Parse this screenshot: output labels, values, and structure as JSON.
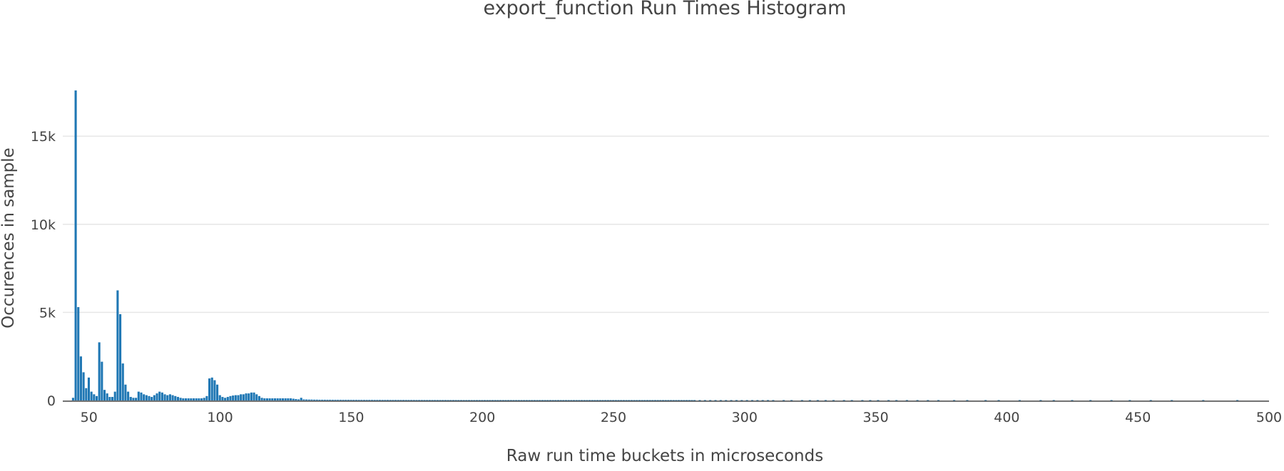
{
  "chart_data": {
    "type": "bar",
    "title": "export_function Run Times Histogram",
    "xlabel": "Raw run time buckets in microseconds",
    "ylabel": "Occurences in sample",
    "xlim": [
      40,
      500
    ],
    "ylim": [
      0,
      18000
    ],
    "x_ticks": [
      50,
      100,
      150,
      200,
      250,
      300,
      350,
      400,
      450,
      500
    ],
    "x_tick_labels": [
      "50",
      "100",
      "150",
      "200",
      "250",
      "300",
      "350",
      "400",
      "450",
      "500"
    ],
    "y_ticks": [
      0,
      5000,
      10000,
      15000
    ],
    "y_tick_labels": [
      "0",
      "5k",
      "10k",
      "15k"
    ],
    "grid": true,
    "color": "#1f77b4",
    "bin_width": 1,
    "bins": [
      [
        44,
        150
      ],
      [
        45,
        17600
      ],
      [
        46,
        5300
      ],
      [
        47,
        2500
      ],
      [
        48,
        1600
      ],
      [
        49,
        700
      ],
      [
        50,
        1300
      ],
      [
        51,
        500
      ],
      [
        52,
        350
      ],
      [
        53,
        250
      ],
      [
        54,
        3300
      ],
      [
        55,
        2200
      ],
      [
        56,
        600
      ],
      [
        57,
        400
      ],
      [
        58,
        200
      ],
      [
        59,
        200
      ],
      [
        60,
        500
      ],
      [
        61,
        6250
      ],
      [
        62,
        4900
      ],
      [
        63,
        2100
      ],
      [
        64,
        900
      ],
      [
        65,
        500
      ],
      [
        66,
        200
      ],
      [
        67,
        150
      ],
      [
        68,
        150
      ],
      [
        69,
        500
      ],
      [
        70,
        450
      ],
      [
        71,
        350
      ],
      [
        72,
        300
      ],
      [
        73,
        250
      ],
      [
        74,
        200
      ],
      [
        75,
        300
      ],
      [
        76,
        400
      ],
      [
        77,
        500
      ],
      [
        78,
        450
      ],
      [
        79,
        350
      ],
      [
        80,
        300
      ],
      [
        81,
        350
      ],
      [
        82,
        300
      ],
      [
        83,
        250
      ],
      [
        84,
        200
      ],
      [
        85,
        150
      ],
      [
        86,
        120
      ],
      [
        87,
        120
      ],
      [
        88,
        120
      ],
      [
        89,
        120
      ],
      [
        90,
        120
      ],
      [
        91,
        120
      ],
      [
        92,
        120
      ],
      [
        93,
        120
      ],
      [
        94,
        150
      ],
      [
        95,
        250
      ],
      [
        96,
        1250
      ],
      [
        97,
        1300
      ],
      [
        98,
        1150
      ],
      [
        99,
        900
      ],
      [
        100,
        300
      ],
      [
        101,
        200
      ],
      [
        102,
        150
      ],
      [
        103,
        200
      ],
      [
        104,
        250
      ],
      [
        105,
        280
      ],
      [
        106,
        300
      ],
      [
        107,
        300
      ],
      [
        108,
        350
      ],
      [
        109,
        350
      ],
      [
        110,
        400
      ],
      [
        111,
        400
      ],
      [
        112,
        450
      ],
      [
        113,
        450
      ],
      [
        114,
        350
      ],
      [
        115,
        250
      ],
      [
        116,
        150
      ],
      [
        117,
        120
      ],
      [
        118,
        120
      ],
      [
        119,
        120
      ],
      [
        120,
        120
      ],
      [
        121,
        120
      ],
      [
        122,
        120
      ],
      [
        123,
        120
      ],
      [
        124,
        120
      ],
      [
        125,
        120
      ],
      [
        126,
        120
      ],
      [
        127,
        120
      ],
      [
        128,
        100
      ],
      [
        129,
        80
      ],
      [
        130,
        60
      ],
      [
        131,
        150
      ],
      [
        132,
        60
      ],
      [
        133,
        55
      ],
      [
        134,
        50
      ],
      [
        135,
        50
      ],
      [
        136,
        45
      ],
      [
        137,
        45
      ],
      [
        138,
        40
      ],
      [
        139,
        40
      ],
      [
        140,
        40
      ],
      [
        141,
        38
      ],
      [
        142,
        38
      ],
      [
        143,
        36
      ],
      [
        144,
        36
      ],
      [
        145,
        35
      ],
      [
        146,
        35
      ],
      [
        147,
        34
      ],
      [
        148,
        34
      ],
      [
        149,
        33
      ],
      [
        150,
        33
      ],
      [
        151,
        32
      ],
      [
        152,
        32
      ],
      [
        153,
        31
      ],
      [
        154,
        31
      ],
      [
        155,
        30
      ],
      [
        156,
        30
      ],
      [
        157,
        30
      ],
      [
        158,
        30
      ],
      [
        159,
        29
      ],
      [
        160,
        29
      ],
      [
        161,
        29
      ],
      [
        162,
        28
      ],
      [
        163,
        28
      ],
      [
        164,
        28
      ],
      [
        165,
        27
      ],
      [
        166,
        27
      ],
      [
        167,
        27
      ],
      [
        168,
        26
      ],
      [
        169,
        26
      ],
      [
        170,
        26
      ],
      [
        171,
        25
      ],
      [
        172,
        25
      ],
      [
        173,
        25
      ],
      [
        174,
        25
      ],
      [
        175,
        24
      ],
      [
        176,
        24
      ],
      [
        177,
        24
      ],
      [
        178,
        24
      ],
      [
        179,
        23
      ],
      [
        180,
        23
      ],
      [
        181,
        23
      ],
      [
        182,
        23
      ],
      [
        183,
        22
      ],
      [
        184,
        22
      ],
      [
        185,
        22
      ],
      [
        186,
        22
      ],
      [
        187,
        21
      ],
      [
        188,
        21
      ],
      [
        189,
        21
      ],
      [
        190,
        21
      ],
      [
        191,
        20
      ],
      [
        192,
        20
      ],
      [
        193,
        20
      ],
      [
        194,
        20
      ],
      [
        195,
        20
      ],
      [
        196,
        20
      ],
      [
        197,
        20
      ],
      [
        198,
        20
      ],
      [
        199,
        20
      ],
      [
        200,
        20
      ],
      [
        201,
        20
      ],
      [
        202,
        20
      ],
      [
        203,
        20
      ],
      [
        204,
        20
      ],
      [
        205,
        20
      ],
      [
        206,
        20
      ],
      [
        207,
        20
      ],
      [
        208,
        20
      ],
      [
        209,
        20
      ],
      [
        210,
        20
      ],
      [
        211,
        20
      ],
      [
        212,
        20
      ],
      [
        213,
        20
      ],
      [
        214,
        20
      ],
      [
        215,
        20
      ],
      [
        216,
        20
      ],
      [
        217,
        20
      ],
      [
        218,
        20
      ],
      [
        219,
        20
      ],
      [
        220,
        20
      ],
      [
        221,
        20
      ],
      [
        222,
        20
      ],
      [
        223,
        20
      ],
      [
        224,
        20
      ],
      [
        225,
        20
      ],
      [
        226,
        20
      ],
      [
        227,
        20
      ],
      [
        228,
        20
      ],
      [
        229,
        20
      ],
      [
        230,
        20
      ],
      [
        231,
        20
      ],
      [
        232,
        20
      ],
      [
        233,
        20
      ],
      [
        234,
        20
      ],
      [
        235,
        20
      ],
      [
        236,
        20
      ],
      [
        237,
        20
      ],
      [
        238,
        20
      ],
      [
        239,
        20
      ],
      [
        240,
        20
      ],
      [
        241,
        20
      ],
      [
        242,
        20
      ],
      [
        243,
        20
      ],
      [
        244,
        20
      ],
      [
        245,
        20
      ],
      [
        246,
        20
      ],
      [
        247,
        20
      ],
      [
        248,
        20
      ],
      [
        249,
        20
      ],
      [
        250,
        20
      ],
      [
        251,
        20
      ],
      [
        252,
        20
      ],
      [
        253,
        20
      ],
      [
        254,
        20
      ],
      [
        255,
        20
      ],
      [
        256,
        20
      ],
      [
        257,
        20
      ],
      [
        258,
        20
      ],
      [
        259,
        20
      ],
      [
        260,
        20
      ],
      [
        261,
        20
      ],
      [
        262,
        20
      ],
      [
        263,
        20
      ],
      [
        264,
        20
      ],
      [
        265,
        20
      ],
      [
        266,
        20
      ],
      [
        267,
        20
      ],
      [
        268,
        20
      ],
      [
        269,
        20
      ],
      [
        270,
        20
      ],
      [
        271,
        20
      ],
      [
        272,
        20
      ],
      [
        273,
        20
      ],
      [
        274,
        20
      ],
      [
        275,
        20
      ],
      [
        276,
        20
      ],
      [
        277,
        20
      ],
      [
        278,
        20
      ],
      [
        279,
        20
      ],
      [
        280,
        20
      ],
      [
        281,
        20
      ],
      [
        283,
        20
      ],
      [
        285,
        20
      ],
      [
        287,
        20
      ],
      [
        289,
        20
      ],
      [
        291,
        20
      ],
      [
        293,
        20
      ],
      [
        295,
        20
      ],
      [
        297,
        20
      ],
      [
        299,
        20
      ],
      [
        301,
        20
      ],
      [
        303,
        20
      ],
      [
        305,
        20
      ],
      [
        307,
        20
      ],
      [
        309,
        20
      ],
      [
        311,
        20
      ],
      [
        315,
        20
      ],
      [
        318,
        20
      ],
      [
        322,
        20
      ],
      [
        325,
        20
      ],
      [
        328,
        20
      ],
      [
        331,
        20
      ],
      [
        334,
        20
      ],
      [
        338,
        20
      ],
      [
        341,
        20
      ],
      [
        345,
        20
      ],
      [
        348,
        20
      ],
      [
        351,
        20
      ],
      [
        355,
        20
      ],
      [
        358,
        20
      ],
      [
        362,
        20
      ],
      [
        366,
        20
      ],
      [
        370,
        20
      ],
      [
        374,
        20
      ],
      [
        380,
        20
      ],
      [
        385,
        20
      ],
      [
        392,
        20
      ],
      [
        397,
        20
      ],
      [
        405,
        20
      ],
      [
        413,
        20
      ],
      [
        418,
        20
      ],
      [
        425,
        20
      ],
      [
        432,
        20
      ],
      [
        440,
        20
      ],
      [
        447,
        20
      ],
      [
        455,
        20
      ],
      [
        463,
        20
      ],
      [
        475,
        20
      ],
      [
        488,
        20
      ]
    ]
  }
}
